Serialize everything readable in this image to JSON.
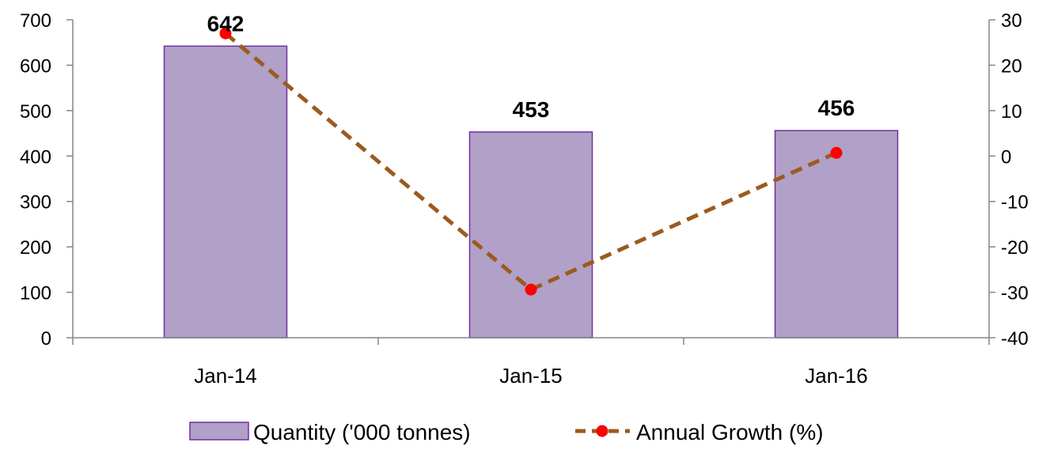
{
  "chart_data": {
    "type": "bar",
    "categories": [
      "Jan-14",
      "Jan-15",
      "Jan-16"
    ],
    "series": [
      {
        "name": "Quantity ('000 tonnes)",
        "type": "bar",
        "axis": "left",
        "values": [
          642,
          453,
          456
        ],
        "data_labels": [
          "642",
          "453",
          "456"
        ],
        "color": "#b1a0c7",
        "border_color": "#7030a0"
      },
      {
        "name": "Annual Growth (%)",
        "type": "line",
        "axis": "right",
        "values": [
          27,
          -29.4,
          0.7
        ],
        "line_color": "#9c5a1e",
        "marker_color": "#ff0000",
        "line_style": "dashed"
      }
    ],
    "left_axis": {
      "min": 0,
      "max": 700,
      "step": 100,
      "ticks": [
        "0",
        "100",
        "200",
        "300",
        "400",
        "500",
        "600",
        "700"
      ]
    },
    "right_axis": {
      "min": -40,
      "max": 30,
      "step": 10,
      "ticks": [
        "-40",
        "-30",
        "-20",
        "-10",
        "0",
        "10",
        "20",
        "30"
      ]
    },
    "grid": false,
    "legend_position": "bottom",
    "title": "",
    "xlabel": "",
    "ylabel": ""
  }
}
